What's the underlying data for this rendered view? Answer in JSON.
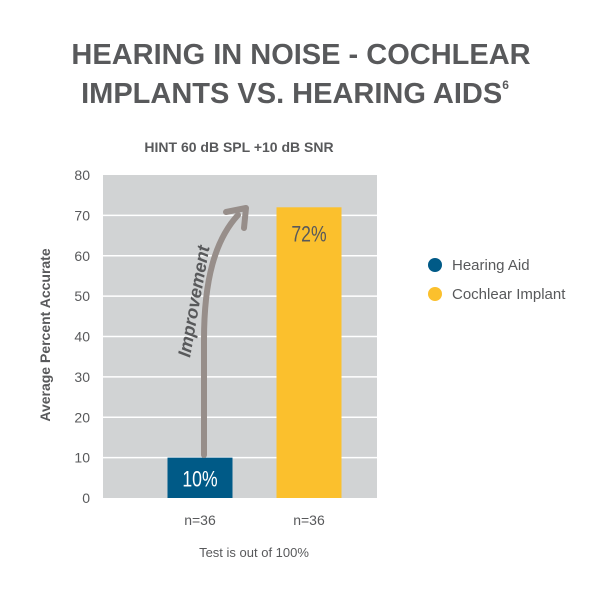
{
  "chart_data": {
    "type": "bar",
    "title_line1": "HEARING IN NOISE - COCHLEAR",
    "title_line2": "IMPLANTS VS. HEARING AIDS",
    "title_superscript": "6",
    "subtitle": "HINT 60 dB SPL +10 dB SNR",
    "ylabel": "Average Percent Accurate",
    "xlabel": "Test is out of 100%",
    "ylim": [
      0,
      80
    ],
    "yticks": [
      "0",
      "10",
      "20",
      "30",
      "40",
      "50",
      "60",
      "70",
      "80"
    ],
    "grid": true,
    "categories": [
      "Hearing Aid",
      "Cochlear Implant"
    ],
    "values": [
      10,
      72
    ],
    "data_labels": [
      "10%",
      "72%"
    ],
    "n_labels": [
      "n=36",
      "n=36"
    ],
    "colors": [
      "#005a87",
      "#fbc02d"
    ],
    "annotation": "Improvement",
    "legend": {
      "placement": "right",
      "entries": [
        "Hearing Aid",
        "Cochlear Implant"
      ]
    }
  }
}
